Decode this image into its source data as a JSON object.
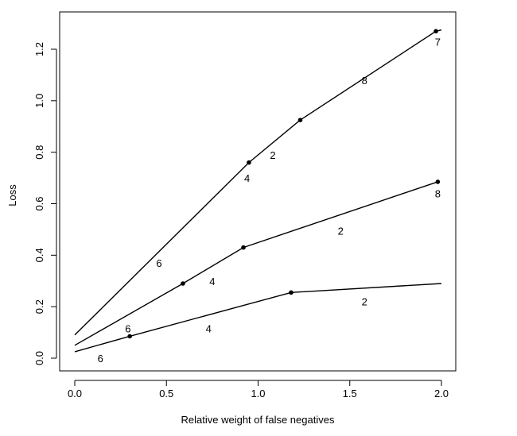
{
  "chart_data": {
    "type": "line",
    "title": "",
    "xlabel": "Relative weight of false negatives",
    "ylabel": "Loss",
    "xlim": [
      0.0,
      2.0
    ],
    "ylim": [
      0.0,
      1.2
    ],
    "xticks": [
      "0.0",
      "0.5",
      "1.0",
      "1.5",
      "2.0"
    ],
    "yticks": [
      "0.0",
      "0.2",
      "0.4",
      "0.6",
      "0.8",
      "1.0",
      "1.2"
    ],
    "grid": false,
    "series": [
      {
        "x": [
          0.0,
          0.95,
          1.23,
          1.97,
          2.0
        ],
        "y": [
          0.09,
          0.76,
          0.925,
          1.27,
          1.275
        ],
        "markers": [
          0.95,
          1.23,
          1.97
        ],
        "segment_labels": [
          {
            "text": "6",
            "x": 0.46,
            "y": 0.37
          },
          {
            "text": "4",
            "x": 0.94,
            "y": 0.7
          },
          {
            "text": "2",
            "x": 1.08,
            "y": 0.79
          },
          {
            "text": "8",
            "x": 1.58,
            "y": 1.08
          },
          {
            "text": "7",
            "x": 1.98,
            "y": 1.23
          }
        ]
      },
      {
        "x": [
          0.0,
          0.59,
          0.92,
          1.98
        ],
        "y": [
          0.05,
          0.29,
          0.43,
          0.685
        ],
        "markers": [
          0.59,
          0.92,
          1.98
        ],
        "segment_labels": [
          {
            "text": "4",
            "x": 0.75,
            "y": 0.3
          },
          {
            "text": "2",
            "x": 1.45,
            "y": 0.495
          },
          {
            "text": "8",
            "x": 1.98,
            "y": 0.64
          }
        ]
      },
      {
        "x": [
          0.0,
          0.3,
          1.18,
          2.0
        ],
        "y": [
          0.025,
          0.085,
          0.255,
          0.29
        ],
        "markers": [
          0.3,
          1.18
        ],
        "segment_labels": [
          {
            "text": "6",
            "x": 0.14,
            "y": 0.0
          },
          {
            "text": "6",
            "x": 0.29,
            "y": 0.115
          },
          {
            "text": "4",
            "x": 0.73,
            "y": 0.115
          },
          {
            "text": "2",
            "x": 1.58,
            "y": 0.22
          }
        ]
      }
    ]
  }
}
